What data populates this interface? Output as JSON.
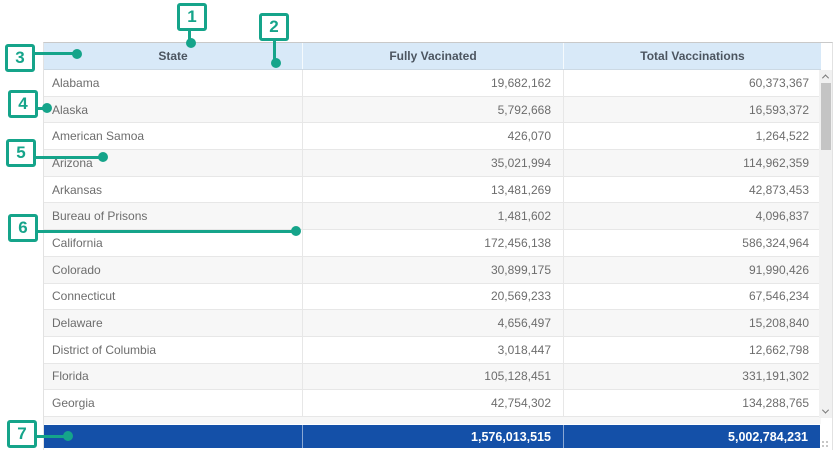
{
  "table": {
    "columns": [
      {
        "label": "State"
      },
      {
        "label": "Fully Vacinated"
      },
      {
        "label": "Total Vaccinations"
      }
    ],
    "rows": [
      {
        "state": "Alabama",
        "fully_vaccinated": "19,682,162",
        "total_vaccinations": "60,373,367"
      },
      {
        "state": "Alaska",
        "fully_vaccinated": "5,792,668",
        "total_vaccinations": "16,593,372"
      },
      {
        "state": "American Samoa",
        "fully_vaccinated": "426,070",
        "total_vaccinations": "1,264,522"
      },
      {
        "state": "Arizona",
        "fully_vaccinated": "35,021,994",
        "total_vaccinations": "114,962,359"
      },
      {
        "state": "Arkansas",
        "fully_vaccinated": "13,481,269",
        "total_vaccinations": "42,873,453"
      },
      {
        "state": "Bureau of Prisons",
        "fully_vaccinated": "1,481,602",
        "total_vaccinations": "4,096,837"
      },
      {
        "state": "California",
        "fully_vaccinated": "172,456,138",
        "total_vaccinations": "586,324,964"
      },
      {
        "state": "Colorado",
        "fully_vaccinated": "30,899,175",
        "total_vaccinations": "91,990,426"
      },
      {
        "state": "Connecticut",
        "fully_vaccinated": "20,569,233",
        "total_vaccinations": "67,546,234"
      },
      {
        "state": "Delaware",
        "fully_vaccinated": "4,656,497",
        "total_vaccinations": "15,208,840"
      },
      {
        "state": "District of Columbia",
        "fully_vaccinated": "3,018,447",
        "total_vaccinations": "12,662,798"
      },
      {
        "state": "Florida",
        "fully_vaccinated": "105,128,451",
        "total_vaccinations": "331,191,302"
      },
      {
        "state": "Georgia",
        "fully_vaccinated": "42,754,302",
        "total_vaccinations": "134,288,765"
      }
    ],
    "totals": {
      "fully_vaccinated": "1,576,013,515",
      "total_vaccinations": "5,002,784,231"
    }
  },
  "annotations": {
    "items": [
      {
        "label": "1"
      },
      {
        "label": "2"
      },
      {
        "label": "3"
      },
      {
        "label": "4"
      },
      {
        "label": "5"
      },
      {
        "label": "6"
      },
      {
        "label": "7"
      }
    ]
  },
  "colors": {
    "annotation_teal": "#15a48a",
    "header_bg": "#d8e9f8",
    "header_text": "#4c5560",
    "total_row_bg": "#1450a8",
    "row_alt_bg": "#f7f7f7",
    "row_text": "#6d6d6d"
  }
}
